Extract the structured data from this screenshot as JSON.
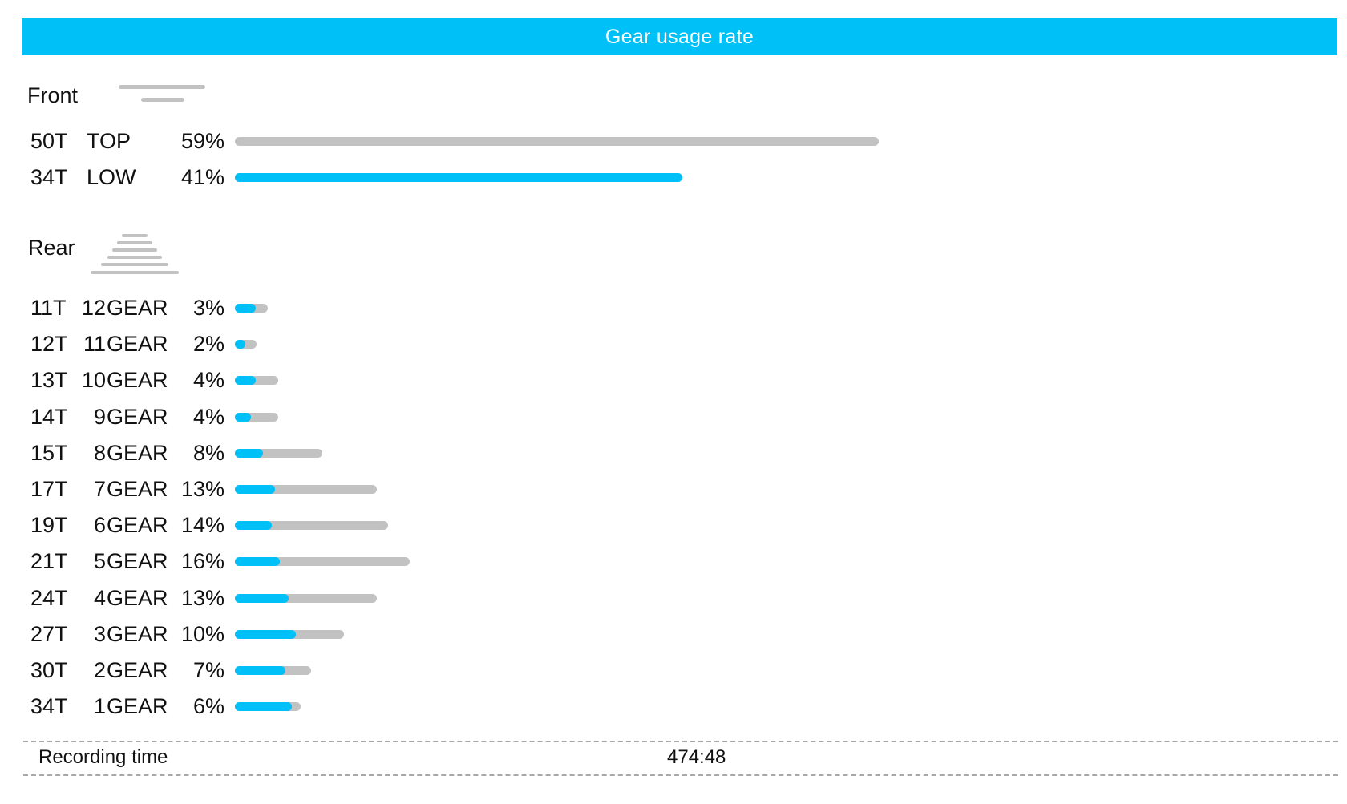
{
  "header": {
    "title": "Gear usage rate"
  },
  "colors": {
    "accent": "#00c0f8",
    "track": "#c2c2c2"
  },
  "front": {
    "label": "Front",
    "icon": "chainring-icon"
  },
  "rear": {
    "label": "Rear",
    "icon": "cassette-icon"
  },
  "footer": {
    "label": "Recording time",
    "value": "474:48"
  },
  "chart_data": [
    {
      "type": "bar",
      "orientation": "horizontal",
      "title": "Front",
      "categories": [
        "50T TOP",
        "34T LOW"
      ],
      "rows": [
        {
          "teeth": "50T",
          "name": "TOP",
          "pct_label": "59%",
          "value": 59,
          "highlight": 0
        },
        {
          "teeth": "34T",
          "name": "LOW",
          "pct_label": "41%",
          "value": 41,
          "highlight": 41
        }
      ],
      "xlim": [
        0,
        100
      ]
    },
    {
      "type": "bar",
      "orientation": "horizontal",
      "title": "Rear",
      "categories": [
        "11T 12 GEAR",
        "12T 11 GEAR",
        "13T 10 GEAR",
        "14T 9 GEAR",
        "15T 8 GEAR",
        "17T 7 GEAR",
        "19T 6 GEAR",
        "21T 5 GEAR",
        "24T 4 GEAR",
        "27T 3 GEAR",
        "30T 2 GEAR",
        "34T 1 GEAR"
      ],
      "rows": [
        {
          "teeth": "11T",
          "num": "12",
          "word": "GEAR",
          "pct_label": "3%",
          "value": 3,
          "highlight": 1.9
        },
        {
          "teeth": "12T",
          "num": "11",
          "word": "GEAR",
          "pct_label": "2%",
          "value": 2,
          "highlight": 0.95
        },
        {
          "teeth": "13T",
          "num": "10",
          "word": "GEAR",
          "pct_label": "4%",
          "value": 4,
          "highlight": 1.9
        },
        {
          "teeth": "14T",
          "num": "9",
          "word": "GEAR",
          "pct_label": "4%",
          "value": 4,
          "highlight": 1.45
        },
        {
          "teeth": "15T",
          "num": "8",
          "word": "GEAR",
          "pct_label": "8%",
          "value": 8,
          "highlight": 2.55
        },
        {
          "teeth": "17T",
          "num": "7",
          "word": "GEAR",
          "pct_label": "13%",
          "value": 13,
          "highlight": 3.65
        },
        {
          "teeth": "19T",
          "num": "6",
          "word": "GEAR",
          "pct_label": "14%",
          "value": 14,
          "highlight": 3.35
        },
        {
          "teeth": "21T",
          "num": "5",
          "word": "GEAR",
          "pct_label": "16%",
          "value": 16,
          "highlight": 4.15
        },
        {
          "teeth": "24T",
          "num": "4",
          "word": "GEAR",
          "pct_label": "13%",
          "value": 13,
          "highlight": 4.95
        },
        {
          "teeth": "27T",
          "num": "3",
          "word": "GEAR",
          "pct_label": "10%",
          "value": 10,
          "highlight": 5.6
        },
        {
          "teeth": "30T",
          "num": "2",
          "word": "GEAR",
          "pct_label": "7%",
          "value": 7,
          "highlight": 4.65
        },
        {
          "teeth": "34T",
          "num": "1",
          "word": "GEAR",
          "pct_label": "6%",
          "value": 6,
          "highlight": 5.25
        }
      ],
      "xlim": [
        0,
        16
      ]
    }
  ]
}
